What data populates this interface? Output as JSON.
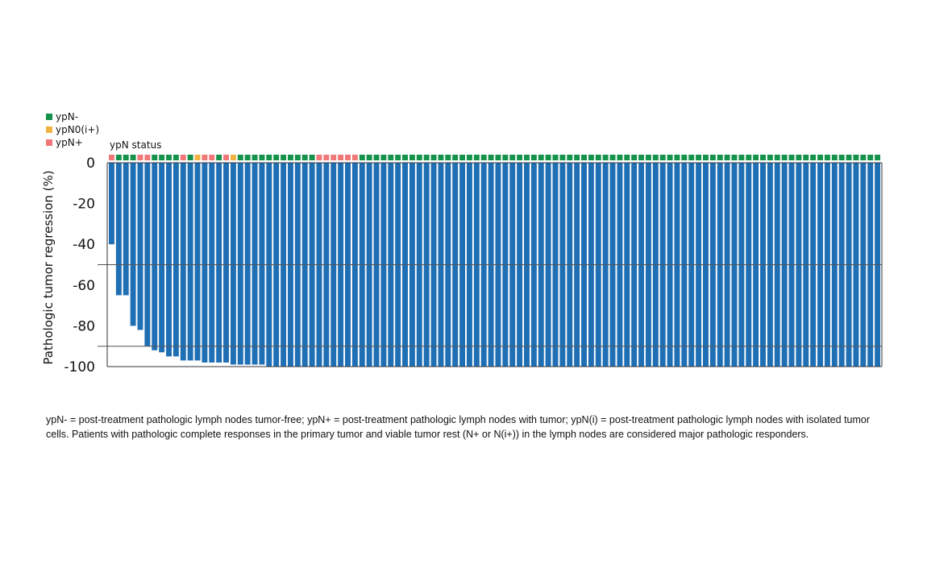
{
  "chart_data": {
    "type": "bar",
    "ylabel": "Pathologic tumor regression (%)",
    "ylim": [
      -100,
      0
    ],
    "yticks": [
      "0",
      "-20",
      "-40",
      "-60",
      "-80",
      "-100"
    ],
    "reference_lines": [
      -50,
      -90
    ],
    "status_label": "ypN status",
    "legend": [
      {
        "name": "ypN-",
        "color": "#15924a"
      },
      {
        "name": "ypN0(i+)",
        "color": "#f2b243"
      },
      {
        "name": "ypN+",
        "color": "#ef7777"
      }
    ],
    "bar_color": "#1f6fb5",
    "values": [
      -40,
      -65,
      -65,
      -80,
      -82,
      -90,
      -92,
      -93,
      -95,
      -95,
      -97,
      -97,
      -97,
      -98,
      -98,
      -98,
      -98,
      -99,
      -99,
      -99,
      -99,
      -99,
      -100,
      -100,
      -100,
      -100,
      -100,
      -100,
      -100,
      -100,
      -100,
      -100,
      -100,
      -100,
      -100,
      -100,
      -100,
      -100,
      -100,
      -100,
      -100,
      -100,
      -100,
      -100,
      -100,
      -100,
      -100,
      -100,
      -100,
      -100,
      -100,
      -100,
      -100,
      -100,
      -100,
      -100,
      -100,
      -100,
      -100,
      -100,
      -100,
      -100,
      -100,
      -100,
      -100,
      -100,
      -100,
      -100,
      -100,
      -100,
      -100,
      -100,
      -100,
      -100,
      -100,
      -100,
      -100,
      -100,
      -100,
      -100,
      -100,
      -100,
      -100,
      -100,
      -100,
      -100,
      -100,
      -100,
      -100,
      -100,
      -100,
      -100,
      -100,
      -100,
      -100,
      -100,
      -100,
      -100,
      -100,
      -100,
      -100,
      -100,
      -100,
      -100,
      -100,
      -100,
      -100,
      -100
    ],
    "status": [
      "ypN+",
      "ypN-",
      "ypN-",
      "ypN-",
      "ypN+",
      "ypN+",
      "ypN-",
      "ypN-",
      "ypN-",
      "ypN-",
      "ypN+",
      "ypN-",
      "ypN0(i+)",
      "ypN+",
      "ypN+",
      "ypN-",
      "ypN+",
      "ypN0(i+)",
      "ypN-",
      "ypN-",
      "ypN-",
      "ypN-",
      "ypN-",
      "ypN-",
      "ypN-",
      "ypN-",
      "ypN-",
      "ypN-",
      "ypN-",
      "ypN+",
      "ypN+",
      "ypN+",
      "ypN+",
      "ypN+",
      "ypN+",
      "ypN-",
      "ypN-",
      "ypN-",
      "ypN-",
      "ypN-",
      "ypN-",
      "ypN-",
      "ypN-",
      "ypN-",
      "ypN-",
      "ypN-",
      "ypN-",
      "ypN-",
      "ypN-",
      "ypN-",
      "ypN-",
      "ypN-",
      "ypN-",
      "ypN-",
      "ypN-",
      "ypN-",
      "ypN-",
      "ypN-",
      "ypN-",
      "ypN-",
      "ypN-",
      "ypN-",
      "ypN-",
      "ypN-",
      "ypN-",
      "ypN-",
      "ypN-",
      "ypN-",
      "ypN-",
      "ypN-",
      "ypN-",
      "ypN-",
      "ypN-",
      "ypN-",
      "ypN-",
      "ypN-",
      "ypN-",
      "ypN-",
      "ypN-",
      "ypN-",
      "ypN-",
      "ypN-",
      "ypN-",
      "ypN-",
      "ypN-",
      "ypN-",
      "ypN-",
      "ypN-",
      "ypN-",
      "ypN-",
      "ypN-",
      "ypN-",
      "ypN-",
      "ypN-",
      "ypN-",
      "ypN-",
      "ypN-",
      "ypN-",
      "ypN-",
      "ypN-",
      "ypN-",
      "ypN-",
      "ypN-",
      "ypN-",
      "ypN-",
      "ypN-",
      "ypN-",
      "ypN-"
    ]
  },
  "caption": "ypN- = post-treatment pathologic lymph nodes tumor-free; ypN+ = post-treatment pathologic lymph nodes with tumor; ypN(i) = post-treatment pathologic lymph nodes with isolated tumor cells. Patients with pathologic complete responses in the primary tumor and viable tumor rest (N+ or N(i+)) in the lymph nodes are considered major pathologic responders."
}
